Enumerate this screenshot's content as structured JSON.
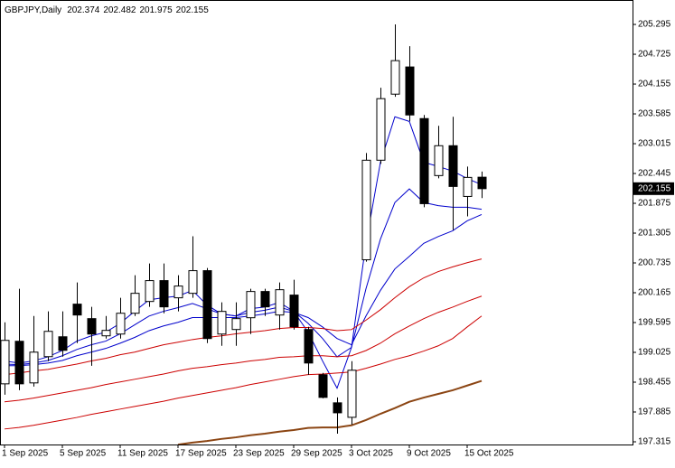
{
  "chart_data": {
    "type": "candlestick",
    "symbol": "GBPJPY,Daily",
    "x": [
      "1 Sep 2025",
      null,
      null,
      null,
      "5 Sep 2025",
      null,
      null,
      null,
      "11 Sep 2025",
      null,
      null,
      null,
      "17 Sep 2025",
      null,
      null,
      null,
      "23 Sep 2025",
      null,
      null,
      null,
      "29 Sep 2025",
      null,
      null,
      null,
      "3 Oct 2025",
      null,
      null,
      null,
      "9 Oct 2025",
      null,
      null,
      null,
      "15 Oct 2025",
      null
    ],
    "open": [
      198.423,
      199.237,
      198.441,
      198.943,
      199.323,
      199.947,
      199.67,
      199.341,
      199.375,
      199.773,
      199.998,
      200.397,
      200.068,
      200.154,
      200.587,
      199.375,
      199.462,
      199.687,
      200.189,
      199.739,
      200.12,
      199.462,
      198.596,
      198.06,
      197.783,
      200.795,
      202.699,
      203.962,
      204.482,
      203.495,
      202.405,
      202.976,
      202.006,
      202.374
    ],
    "high": [
      199.6,
      200.241,
      199.721,
      199.808,
      199.808,
      200.362,
      199.895,
      199.721,
      200.068,
      200.5,
      200.725,
      200.725,
      200.5,
      201.245,
      200.639,
      199.981,
      199.981,
      200.241,
      200.241,
      200.362,
      200.414,
      199.514,
      198.631,
      198.164,
      198.856,
      202.837,
      204.084,
      205.295,
      204.88,
      203.564,
      203.357,
      203.53,
      202.578,
      202.482
    ],
    "low": [
      198.216,
      198.302,
      198.371,
      198.856,
      198.943,
      199.202,
      198.769,
      199.289,
      199.289,
      199.721,
      199.895,
      199.773,
      199.808,
      200.068,
      199.202,
      199.15,
      199.15,
      199.375,
      199.721,
      199.462,
      199.462,
      198.596,
      198.146,
      197.471,
      197.644,
      200.76,
      202.63,
      203.911,
      203.443,
      201.799,
      202.353,
      201.366,
      201.626,
      201.975
    ],
    "close": [
      199.254,
      198.423,
      199.029,
      199.427,
      199.064,
      199.739,
      199.375,
      199.445,
      199.773,
      200.154,
      200.397,
      199.895,
      200.293,
      200.587,
      199.289,
      199.808,
      199.67,
      200.189,
      199.895,
      200.223,
      199.514,
      198.821,
      198.164,
      197.869,
      198.683,
      202.699,
      203.876,
      204.603,
      203.564,
      201.868,
      202.976,
      202.197,
      202.37,
      202.155
    ],
    "up_color": "#ffffff",
    "down_color": "#000000",
    "series": [
      {
        "color": "#0000cc",
        "values": [
          198.86,
          198.82,
          198.86,
          198.94,
          199.06,
          199.24,
          199.34,
          199.41,
          199.58,
          199.81,
          200.03,
          200.07,
          200.1,
          200.21,
          199.93,
          199.76,
          199.72,
          199.86,
          199.89,
          199.98,
          199.81,
          199.41,
          198.86,
          198.34,
          199.12,
          201.11,
          202.66,
          203.53,
          203.44,
          202.66,
          202.58,
          202.49,
          202.35,
          202.23
        ]
      },
      {
        "color": "#0000cc",
        "values": [
          198.8,
          198.79,
          198.82,
          198.87,
          198.96,
          199.08,
          199.17,
          199.24,
          199.38,
          199.55,
          199.72,
          199.81,
          199.88,
          199.96,
          199.86,
          199.76,
          199.72,
          199.79,
          199.83,
          199.89,
          199.81,
          199.58,
          199.29,
          198.94,
          199.12,
          200.24,
          201.19,
          201.89,
          202.15,
          201.89,
          201.83,
          201.8,
          201.8,
          201.76
        ]
      },
      {
        "color": "#0000cc",
        "values": [
          198.77,
          198.77,
          198.79,
          198.82,
          198.87,
          198.96,
          199.03,
          199.1,
          199.2,
          199.31,
          199.44,
          199.53,
          199.6,
          199.69,
          199.69,
          199.69,
          199.69,
          199.72,
          199.76,
          199.81,
          199.79,
          199.69,
          199.51,
          199.29,
          199.17,
          199.72,
          200.21,
          200.62,
          200.86,
          201.11,
          201.24,
          201.35,
          201.54,
          201.66
        ]
      },
      {
        "color": "#cc0000",
        "values": [
          198.6,
          198.63,
          198.67,
          198.7,
          198.75,
          198.8,
          198.86,
          198.91,
          198.98,
          199.03,
          199.1,
          199.17,
          199.22,
          199.27,
          199.31,
          199.34,
          199.38,
          199.41,
          199.44,
          199.48,
          199.5,
          199.5,
          199.48,
          199.44,
          199.46,
          199.64,
          199.84,
          200.07,
          200.28,
          200.45,
          200.57,
          200.66,
          200.74,
          200.81
        ]
      },
      {
        "color": "#cc0000",
        "values": [
          198.08,
          198.11,
          198.15,
          198.2,
          198.25,
          198.3,
          198.35,
          198.41,
          198.46,
          198.51,
          198.56,
          198.61,
          198.67,
          198.72,
          198.75,
          198.79,
          198.82,
          198.86,
          198.89,
          198.93,
          198.94,
          198.96,
          198.96,
          198.94,
          198.96,
          199.06,
          199.2,
          199.38,
          199.53,
          199.67,
          199.79,
          199.89,
          200.0,
          200.1
        ]
      },
      {
        "color": "#cc0000",
        "values": [
          197.56,
          197.59,
          197.63,
          197.68,
          197.73,
          197.78,
          197.84,
          197.89,
          197.94,
          197.99,
          198.04,
          198.09,
          198.15,
          198.2,
          198.25,
          198.3,
          198.35,
          198.41,
          198.46,
          198.51,
          198.56,
          198.6,
          198.61,
          198.63,
          198.65,
          198.72,
          198.8,
          198.89,
          198.96,
          199.05,
          199.15,
          199.29,
          199.51,
          199.72
        ]
      },
      {
        "color": "#8b4513",
        "values": [
          null,
          null,
          null,
          null,
          null,
          null,
          null,
          null,
          null,
          null,
          null,
          null,
          197.26,
          197.3,
          197.33,
          197.37,
          197.4,
          197.44,
          197.47,
          197.51,
          197.54,
          197.58,
          197.59,
          197.59,
          197.63,
          197.73,
          197.85,
          197.96,
          198.08,
          198.16,
          198.23,
          198.3,
          198.39,
          198.48
        ]
      }
    ],
    "ylim": [
      197.263,
      205.745
    ],
    "yticks": [
      197.315,
      197.885,
      198.455,
      199.025,
      199.595,
      200.165,
      200.735,
      201.305,
      201.875,
      202.445,
      203.015,
      203.585,
      204.155,
      204.725,
      205.295
    ]
  }
}
